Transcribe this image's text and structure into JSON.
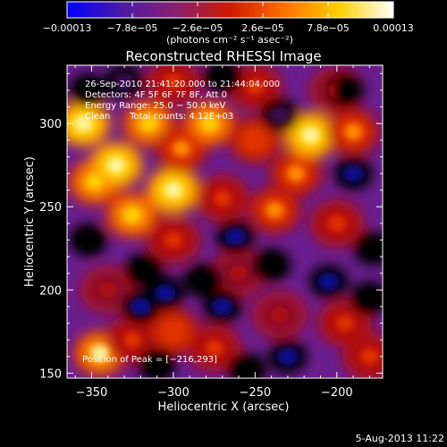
{
  "chart_data": {
    "type": "heatmap",
    "title": "Reconstructed RHESSI Image",
    "xlabel": "Heliocentric X (arcsec)",
    "ylabel": "Heliocentric Y (arcsec)",
    "xlim": [
      -365,
      -172
    ],
    "ylim": [
      147,
      335
    ],
    "x_ticks": [
      -350,
      -300,
      -250,
      -200
    ],
    "x_tick_labels": [
      "−350",
      "−300",
      "−250",
      "−200"
    ],
    "y_ticks": [
      150,
      200,
      250,
      300
    ],
    "y_tick_labels": [
      "150",
      "200",
      "250",
      "300"
    ],
    "colorbar": {
      "range": [
        -0.00013,
        0.00013
      ],
      "ticks": [
        -0.00013,
        -7.8e-05,
        -2.6e-05,
        2.6e-05,
        7.8e-05,
        0.00013
      ],
      "tick_labels": [
        "−0.00013",
        "−7.8e−05",
        "−2.6e−05",
        "2.6e−05",
        "7.8e−05",
        "0.00013"
      ],
      "units_label": "(photons cm⁻² s⁻¹ asec⁻²)",
      "colors": [
        "#0000ff",
        "#4a1aa8",
        "#8a2070",
        "#d01800",
        "#ff7000",
        "#ffd000",
        "#ffffff"
      ]
    },
    "annotations": {
      "time_range": "26-Sep-2010 21:41:20.000 to 21:44:04.000",
      "detectors": "Detectors: 4F 5F 6F 7F 8F, Att 0",
      "energy_range": "Energy Range: 25.0 − 50.0 keV",
      "method": "Clean",
      "total_counts": "Total counts: 4.12E+03",
      "peak_position": "Position of Peak = [−216,293]"
    },
    "blobs": [
      {
        "x": -355,
        "y": 300,
        "v": 1.0
      },
      {
        "x": -348,
        "y": 265,
        "v": 0.8
      },
      {
        "x": -335,
        "y": 275,
        "v": 1.0
      },
      {
        "x": -315,
        "y": 300,
        "v": 0.9
      },
      {
        "x": -325,
        "y": 245,
        "v": 0.85
      },
      {
        "x": -300,
        "y": 260,
        "v": 1.0
      },
      {
        "x": -295,
        "y": 285,
        "v": 0.6
      },
      {
        "x": -278,
        "y": 300,
        "v": 0.8
      },
      {
        "x": -270,
        "y": 255,
        "v": 0.45
      },
      {
        "x": -250,
        "y": 290,
        "v": 0.55
      },
      {
        "x": -238,
        "y": 248,
        "v": 0.6
      },
      {
        "x": -225,
        "y": 270,
        "v": 0.65
      },
      {
        "x": -216,
        "y": 293,
        "v": 1.0
      },
      {
        "x": -190,
        "y": 295,
        "v": 0.7
      },
      {
        "x": -200,
        "y": 240,
        "v": 0.5
      },
      {
        "x": -300,
        "y": 230,
        "v": 0.4
      },
      {
        "x": -340,
        "y": 200,
        "v": 0.3
      },
      {
        "x": -345,
        "y": 162,
        "v": 0.95
      },
      {
        "x": -325,
        "y": 170,
        "v": 0.5
      },
      {
        "x": -300,
        "y": 175,
        "v": 0.55
      },
      {
        "x": -275,
        "y": 165,
        "v": 0.4
      },
      {
        "x": -260,
        "y": 210,
        "v": 0.35
      },
      {
        "x": -235,
        "y": 185,
        "v": 0.3
      },
      {
        "x": -195,
        "y": 180,
        "v": 0.45
      },
      {
        "x": -180,
        "y": 160,
        "v": 0.5
      },
      {
        "x": -300,
        "y": 325,
        "v": 0.5
      },
      {
        "x": -250,
        "y": 322,
        "v": 0.45
      },
      {
        "x": -200,
        "y": 320,
        "v": 0.3
      },
      {
        "x": -262,
        "y": 232,
        "v": -0.9
      },
      {
        "x": -240,
        "y": 215,
        "v": -0.6
      },
      {
        "x": -282,
        "y": 206,
        "v": -0.55
      },
      {
        "x": -318,
        "y": 212,
        "v": -0.6
      },
      {
        "x": -352,
        "y": 230,
        "v": -0.5
      },
      {
        "x": -320,
        "y": 190,
        "v": -0.7
      },
      {
        "x": -305,
        "y": 198,
        "v": -0.8
      },
      {
        "x": -270,
        "y": 190,
        "v": -0.7
      },
      {
        "x": -230,
        "y": 160,
        "v": -0.8
      },
      {
        "x": -205,
        "y": 205,
        "v": -0.9
      },
      {
        "x": -190,
        "y": 270,
        "v": -0.7
      },
      {
        "x": -178,
        "y": 225,
        "v": -0.6
      },
      {
        "x": -195,
        "y": 320,
        "v": -0.55
      },
      {
        "x": -235,
        "y": 305,
        "v": -0.35
      },
      {
        "x": -270,
        "y": 328,
        "v": -0.45
      },
      {
        "x": -352,
        "y": 320,
        "v": -0.5
      },
      {
        "x": -330,
        "y": 325,
        "v": -0.3
      },
      {
        "x": -310,
        "y": 155,
        "v": -0.55
      },
      {
        "x": -255,
        "y": 152,
        "v": -0.5
      },
      {
        "x": -180,
        "y": 195,
        "v": -0.55
      }
    ]
  },
  "footer": {
    "timestamp": "5-Aug-2013 11:22"
  }
}
